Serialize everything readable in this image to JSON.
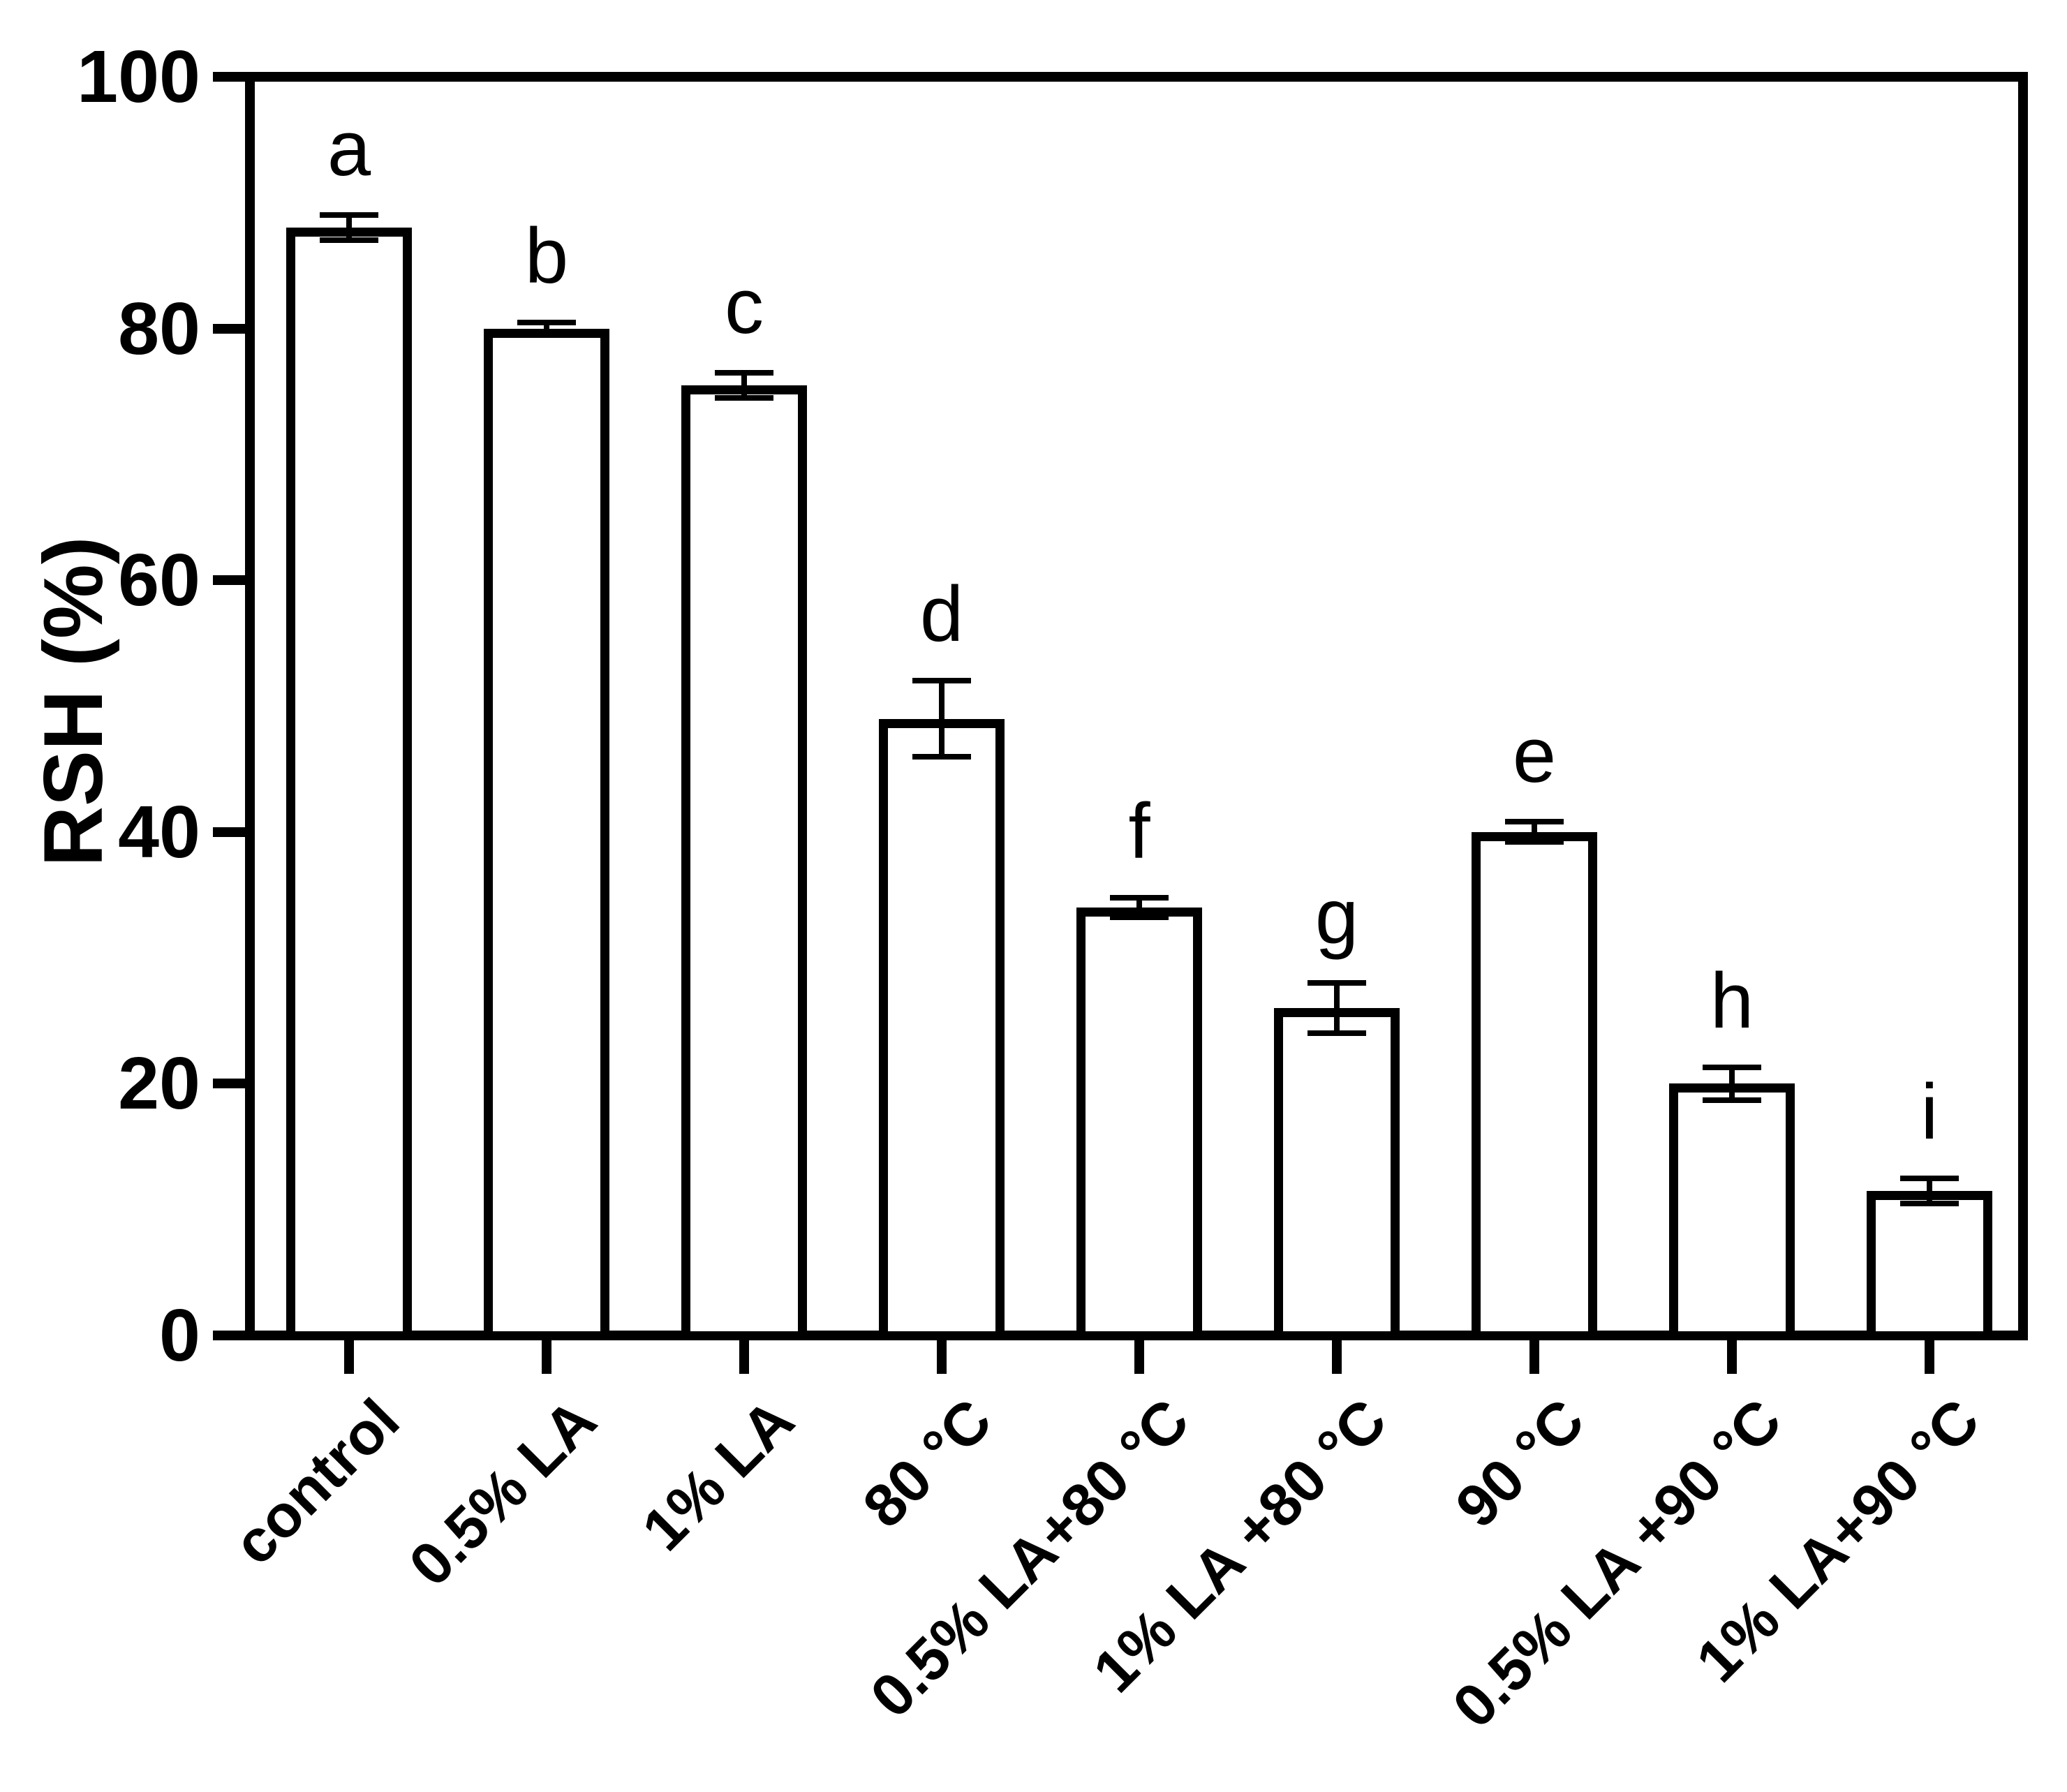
{
  "figure": {
    "background_color": "#ffffff",
    "axis_color": "#000000",
    "text_color": "#000000"
  },
  "chart_data": {
    "type": "bar",
    "title": "",
    "xlabel": "",
    "ylabel": "RSH (%)",
    "ylim": [
      0,
      100
    ],
    "yticks": [
      0,
      20,
      40,
      60,
      80,
      100
    ],
    "grid": false,
    "legend": "none",
    "frame": "full-box",
    "bar_fill": "#ffffff",
    "bar_border": "#000000",
    "error_bar_color": "#000000",
    "categories": [
      "control",
      "0.5% LA",
      "1% LA",
      "80 °C",
      "0.5% LA+80 °C",
      "1% LA +80 °C",
      "90 °C",
      "0.5% LA +90 °C",
      "1% LA+90 °C"
    ],
    "values": [
      88,
      80,
      75.5,
      49,
      34,
      26,
      40,
      20,
      11.5
    ],
    "errors": [
      1,
      0.5,
      1,
      3,
      0.8,
      2,
      0.8,
      1.3,
      1
    ],
    "significance_letters": [
      "a",
      "b",
      "c",
      "d",
      "f",
      "g",
      "e",
      "h",
      "i"
    ]
  }
}
